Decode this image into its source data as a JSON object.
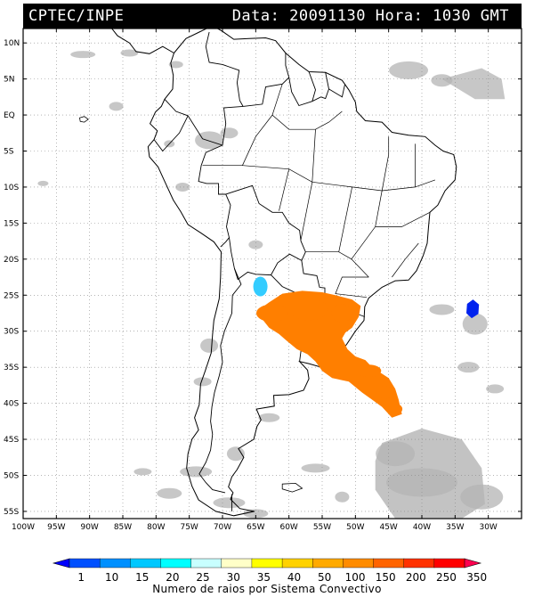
{
  "header": {
    "left": "CPTEC/INPE",
    "right": "Data: 20091130 Hora: 1030 GMT"
  },
  "map": {
    "lon_range": [
      -100,
      -25
    ],
    "lat_range": [
      -56,
      12
    ],
    "lat_labels": [
      "10N",
      "5N",
      "EQ",
      "5S",
      "10S",
      "15S",
      "20S",
      "25S",
      "30S",
      "35S",
      "40S",
      "45S",
      "50S",
      "55S"
    ],
    "lon_labels": [
      "100W",
      "95W",
      "90W",
      "85W",
      "80W",
      "75W",
      "70W",
      "65W",
      "60W",
      "55W",
      "50W",
      "45W",
      "40W",
      "35W",
      "30W"
    ],
    "graticule": "dotted",
    "colors": {
      "cloud": "#b4b4b4",
      "storm_orange": "#ff7f00",
      "storm_cyan": "#33ccff",
      "storm_blue": "#0022ee"
    }
  },
  "colorbar": {
    "labels": [
      "1",
      "10",
      "15",
      "20",
      "25",
      "30",
      "35",
      "40",
      "50",
      "100",
      "150",
      "200",
      "250",
      "350"
    ],
    "colors": [
      "#0000ff",
      "#0050ff",
      "#0090ff",
      "#00c8ff",
      "#00ffff",
      "#c8ffff",
      "#ffffc8",
      "#ffff00",
      "#ffd200",
      "#ffaa00",
      "#ff8c00",
      "#ff6400",
      "#ff3200",
      "#ff0000",
      "#ff0050"
    ],
    "title": "Numero de raios por Sistema Convectivo"
  }
}
